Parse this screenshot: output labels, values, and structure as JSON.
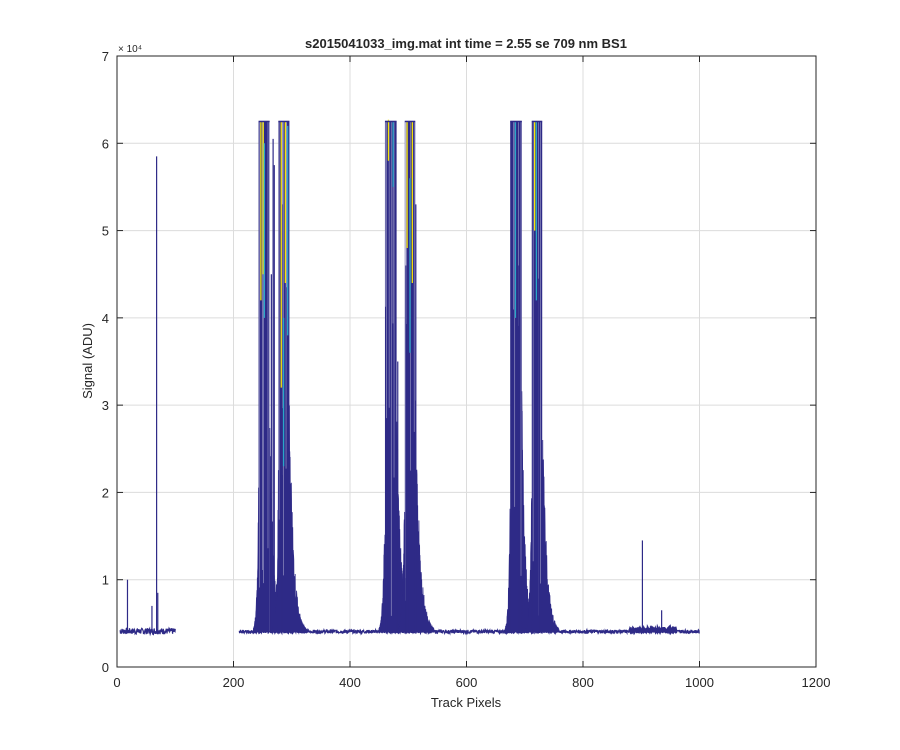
{
  "chart_data": {
    "type": "line",
    "title": "s2015041033_img.mat int time = 2.55 se  709 nm BS1",
    "xlabel": "Track Pixels",
    "ylabel": "Signal (ADU)",
    "xlim": [
      0,
      1200
    ],
    "ylim": [
      0,
      70000
    ],
    "y_exponent_label": "× 10⁴",
    "xticks": [
      0,
      200,
      400,
      600,
      800,
      1000,
      1200
    ],
    "xtick_labels": [
      "0",
      "200",
      "400",
      "600",
      "800",
      "1000",
      "1200"
    ],
    "yticks": [
      0,
      10000,
      20000,
      30000,
      40000,
      50000,
      60000,
      70000
    ],
    "ytick_labels": [
      "0",
      "1",
      "2",
      "3",
      "4",
      "5",
      "6",
      "7"
    ],
    "grid": true,
    "baseline": 4000,
    "saturation": 62500,
    "colors": {
      "main": "#2e2a87",
      "accent_teal": "#2aa6c8",
      "accent_yellow": "#f5e50a",
      "grid": "#dcdcdc",
      "axis": "#262626"
    },
    "segments": [
      {
        "x": [
          5,
          100
        ],
        "noise": 700
      },
      {
        "x": [
          210,
          1000
        ],
        "noise": 400
      }
    ],
    "bands": [
      {
        "x": [
          243,
          262
        ],
        "level": 62500,
        "decay": 6
      },
      {
        "x": [
          277,
          296
        ],
        "level": 62500,
        "decay": 7
      },
      {
        "x": [
          460,
          480
        ],
        "level": 62500,
        "decay": 7
      },
      {
        "x": [
          494,
          512
        ],
        "level": 62500,
        "decay": 8
      },
      {
        "x": [
          675,
          695
        ],
        "level": 62500,
        "decay": 6
      },
      {
        "x": [
          712,
          730
        ],
        "level": 62500,
        "decay": 7
      }
    ],
    "spikes": [
      {
        "x": 18,
        "y": 10000
      },
      {
        "x": 60,
        "y": 7000
      },
      {
        "x": 68,
        "y": 58500
      },
      {
        "x": 70,
        "y": 8500
      },
      {
        "x": 255,
        "y": 60000
      },
      {
        "x": 268,
        "y": 60500
      },
      {
        "x": 270,
        "y": 57500
      },
      {
        "x": 283,
        "y": 53000
      },
      {
        "x": 265,
        "y": 45000
      },
      {
        "x": 465,
        "y": 50000
      },
      {
        "x": 482,
        "y": 35000
      },
      {
        "x": 496,
        "y": 46000
      },
      {
        "x": 513,
        "y": 53000
      },
      {
        "x": 502,
        "y": 41000
      },
      {
        "x": 680,
        "y": 19000
      },
      {
        "x": 690,
        "y": 46000
      },
      {
        "x": 724,
        "y": 44500
      },
      {
        "x": 902,
        "y": 14500
      },
      {
        "x": 935,
        "y": 6500
      }
    ],
    "humps": [
      {
        "x": [
          880,
          960
        ],
        "level": 4300
      }
    ],
    "accent_lines": [
      {
        "x": 247,
        "y0": 42000,
        "y1": 62500,
        "color": "yellow"
      },
      {
        "x": 251,
        "y0": 45000,
        "y1": 62500,
        "color": "yellow"
      },
      {
        "x": 253,
        "y0": 40000,
        "y1": 60000,
        "color": "teal"
      },
      {
        "x": 282,
        "y0": 32000,
        "y1": 62500,
        "color": "yellow"
      },
      {
        "x": 286,
        "y0": 23000,
        "y1": 40000,
        "color": "teal"
      },
      {
        "x": 289,
        "y0": 44000,
        "y1": 62500,
        "color": "yellow"
      },
      {
        "x": 293,
        "y0": 38000,
        "y1": 62000,
        "color": "teal"
      },
      {
        "x": 466,
        "y0": 58000,
        "y1": 62700,
        "color": "yellow"
      },
      {
        "x": 474,
        "y0": 55000,
        "y1": 62500,
        "color": "teal"
      },
      {
        "x": 498,
        "y0": 48000,
        "y1": 62500,
        "color": "yellow"
      },
      {
        "x": 503,
        "y0": 36000,
        "y1": 56000,
        "color": "teal"
      },
      {
        "x": 507,
        "y0": 44000,
        "y1": 62500,
        "color": "yellow"
      },
      {
        "x": 684,
        "y0": 40000,
        "y1": 62500,
        "color": "teal"
      },
      {
        "x": 717,
        "y0": 50000,
        "y1": 62500,
        "color": "yellow"
      },
      {
        "x": 720,
        "y0": 42000,
        "y1": 62500,
        "color": "teal"
      }
    ]
  }
}
